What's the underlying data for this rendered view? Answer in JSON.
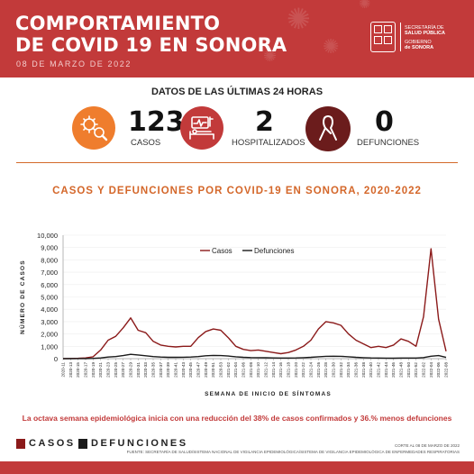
{
  "header": {
    "title_line1": "COMPORTAMIENTO",
    "title_line2": "DE COVID 19 EN SONORA",
    "date": "08 DE MARZO DE 2022",
    "logo_line1": "SECRETARÍA DE",
    "logo_line2": "SALUD PÚBLICA",
    "logo_line3": "GOBIERNO",
    "logo_line4": "de SONORA"
  },
  "stats": {
    "title": "DATOS DE LAS ÚLTIMAS 24 HORAS",
    "casos": {
      "value": "123",
      "label": "CASOS",
      "icon": "virus-search-icon",
      "color": "#ef7d2d"
    },
    "hospitalizados": {
      "value": "2",
      "label": "HOSPITALIZADOS",
      "icon": "hospital-bed-icon",
      "color": "#c23a3a"
    },
    "defunciones": {
      "value": "0",
      "label": "DEFUNCIONES",
      "icon": "ribbon-icon",
      "color": "#6b1c1c"
    }
  },
  "chart_title": "CASOS Y DEFUNCIONES POR COVID-19 EN SONORA, 2020-2022",
  "chart_data": {
    "type": "line",
    "ylabel": "NÚMERO DE CASOS",
    "xlabel": "SEMANA DE INICIO DE SÍNTOMAS",
    "ylim": [
      0,
      10000
    ],
    "yticks": [
      "0",
      "1,000",
      "2,000",
      "3,000",
      "4,000",
      "5,000",
      "6,000",
      "7,000",
      "8,000",
      "9,000",
      "10,000"
    ],
    "legend_position": "top-center",
    "categories": [
      "2020-11",
      "2020-13",
      "2020-15",
      "2020-17",
      "2020-19",
      "2020-21",
      "2020-23",
      "2020-25",
      "2020-27",
      "2020-29",
      "2020-31",
      "2020-33",
      "2020-35",
      "2020-37",
      "2020-39",
      "2020-41",
      "2020-43",
      "2020-45",
      "2020-47",
      "2020-49",
      "2020-51",
      "2020-53",
      "2021-02",
      "2021-04",
      "2021-06",
      "2021-08",
      "2021-10",
      "2021-12",
      "2021-14",
      "2021-16",
      "2021-18",
      "2021-20",
      "2021-22",
      "2021-24",
      "2021-26",
      "2021-28",
      "2021-30",
      "2021-32",
      "2021-34",
      "2021-36",
      "2021-38",
      "2021-40",
      "2021-42",
      "2021-44",
      "2021-46",
      "2021-48",
      "2021-50",
      "2021-52",
      "2022-02",
      "2022-04",
      "2022-06",
      "2022-08"
    ],
    "series": [
      {
        "name": "Casos",
        "color": "#8b1a1a",
        "values": [
          5,
          15,
          30,
          60,
          150,
          700,
          1500,
          1800,
          2500,
          3300,
          2300,
          2100,
          1400,
          1100,
          1000,
          950,
          1000,
          1000,
          1700,
          2200,
          2400,
          2300,
          1700,
          1000,
          750,
          650,
          700,
          600,
          500,
          400,
          500,
          700,
          1000,
          1500,
          2400,
          3000,
          2900,
          2700,
          2000,
          1500,
          1200,
          900,
          1000,
          900,
          1100,
          1600,
          1400,
          1000,
          3400,
          8900,
          3200,
          600
        ]
      },
      {
        "name": "Defunciones",
        "color": "#1a1a1a",
        "values": [
          0,
          0,
          5,
          10,
          20,
          60,
          130,
          170,
          250,
          350,
          300,
          230,
          170,
          130,
          110,
          110,
          120,
          130,
          170,
          230,
          260,
          250,
          210,
          150,
          110,
          90,
          80,
          70,
          60,
          50,
          50,
          60,
          80,
          110,
          150,
          190,
          200,
          190,
          150,
          110,
          80,
          60,
          50,
          45,
          40,
          50,
          50,
          50,
          90,
          200,
          250,
          100
        ]
      }
    ]
  },
  "note": "La octava semana epidemiológica inicia con una reducción del 38% de casos confirmados y 36.% menos defunciones",
  "bottom_legend": {
    "casos": "CASOS",
    "defunciones": "DEFUNCIONES"
  },
  "footer": {
    "cut": "CORTE AL 08 DE MARZO DE 2022",
    "source": "FUENTE: SECRETARÍA DE SALUD/SISTEMA NACIONAL DE VIGILANCIA EPIDEMIOLÓGICA/SISTEMA DE VIGILANCIA EPIDEMIOLÓGICA DE ENFERMEDADES RESPIRATORIAS"
  },
  "colors": {
    "brand_red": "#c23a3a",
    "orange": "#ef7d2d",
    "dark_red": "#6b1c1c",
    "casos_line": "#8b1a1a",
    "defunciones_line": "#1a1a1a"
  }
}
